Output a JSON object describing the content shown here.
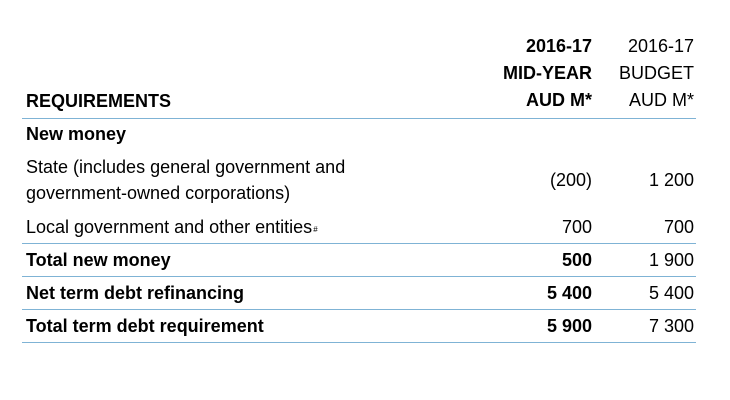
{
  "table": {
    "header": {
      "label": "REQUIREMENTS",
      "col1": [
        "2016-17",
        "MID-YEAR",
        "AUD M*"
      ],
      "col2": [
        "2016-17",
        "BUDGET",
        "AUD M*"
      ]
    },
    "section_title": "New money",
    "rows": [
      {
        "label_line1": "State (includes general government and",
        "label_line2": "government-owned corporations)",
        "mid_year": "(200)",
        "budget": "1 200"
      },
      {
        "label": "Local government and other entities",
        "footnote_mark": "#",
        "mid_year": "700",
        "budget": "700"
      },
      {
        "label": "Total new money",
        "mid_year": "500",
        "budget": "1 900"
      },
      {
        "label": "Net term debt refinancing",
        "mid_year": "5 400",
        "budget": "5 400"
      },
      {
        "label": "Total term debt requirement",
        "mid_year": "5 900",
        "budget": "7 300"
      }
    ]
  },
  "colors": {
    "rule": "#7fb3d5",
    "text": "#000000"
  }
}
